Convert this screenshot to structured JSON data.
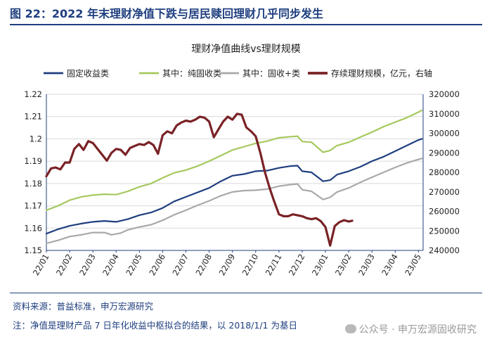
{
  "figure_title": "图 22：2022 年末理财净值下跌与居民赎回理财几乎同步发生",
  "footer": {
    "source": "资料来源：普益标准，申万宏源研究",
    "note": "注：净值是理财产品 7 日年化收益中枢拟合的结果，以 2018/1/1 为基日",
    "watermark": "公众号 · 申万宏源固收研究"
  },
  "colors": {
    "navy": "#1f3f7f",
    "green": "#a6c85e",
    "gray": "#a9a9a9",
    "maroon": "#7a2226"
  },
  "chart_data": {
    "type": "line",
    "title": "理财净值曲线vs理财规模",
    "x_tick_labels": [
      "22/01",
      "22/02",
      "22/03",
      "22/04",
      "22/05",
      "22/06",
      "22/07",
      "22/08",
      "22/09",
      "22/10",
      "22/11",
      "22/12",
      "23/01",
      "23/02",
      "23/03",
      "23/04",
      "23/05"
    ],
    "x_range": [
      0,
      16.2
    ],
    "y_left": {
      "range": [
        1.15,
        1.22
      ],
      "ticks": [
        1.15,
        1.16,
        1.17,
        1.18,
        1.19,
        1.2,
        1.21,
        1.22
      ],
      "tick_labels": [
        "1.15",
        "1.16",
        "1.17",
        "1.18",
        "1.19",
        "1.2",
        "1.21",
        "1.22"
      ]
    },
    "y_right": {
      "range": [
        240000,
        320000
      ],
      "ticks": [
        240000,
        250000,
        260000,
        270000,
        280000,
        290000,
        300000,
        310000,
        320000
      ],
      "tick_labels": [
        "240000",
        "250000",
        "260000",
        "270000",
        "280000",
        "290000",
        "300000",
        "310000",
        "320000"
      ]
    },
    "series": [
      {
        "name": "固定收益类",
        "axis": "left",
        "color": "#1f3f7f",
        "width": 2.2,
        "points": [
          [
            0,
            1.1575
          ],
          [
            0.5,
            1.1595
          ],
          [
            1,
            1.161
          ],
          [
            1.5,
            1.162
          ],
          [
            2,
            1.1628
          ],
          [
            2.5,
            1.1632
          ],
          [
            3,
            1.1628
          ],
          [
            3.5,
            1.164
          ],
          [
            4,
            1.1658
          ],
          [
            4.5,
            1.167
          ],
          [
            5,
            1.169
          ],
          [
            5.5,
            1.172
          ],
          [
            6,
            1.174
          ],
          [
            6.5,
            1.176
          ],
          [
            7,
            1.178
          ],
          [
            7.5,
            1.181
          ],
          [
            8,
            1.1835
          ],
          [
            8.5,
            1.1842
          ],
          [
            9,
            1.1855
          ],
          [
            9.5,
            1.1858
          ],
          [
            10,
            1.187
          ],
          [
            10.5,
            1.1878
          ],
          [
            10.8,
            1.188
          ],
          [
            11,
            1.1855
          ],
          [
            11.4,
            1.185
          ],
          [
            11.9,
            1.181
          ],
          [
            12.2,
            1.1815
          ],
          [
            12.5,
            1.184
          ],
          [
            13,
            1.1855
          ],
          [
            13.5,
            1.1875
          ],
          [
            14,
            1.19
          ],
          [
            14.5,
            1.192
          ],
          [
            15,
            1.1945
          ],
          [
            15.5,
            1.197
          ],
          [
            16,
            1.1995
          ],
          [
            16.15,
            1.2
          ]
        ]
      },
      {
        "name": "其中：纯固收类",
        "axis": "left",
        "color": "#a6c85e",
        "width": 2.2,
        "points": [
          [
            0,
            1.168
          ],
          [
            0.5,
            1.17
          ],
          [
            1,
            1.1725
          ],
          [
            1.5,
            1.174
          ],
          [
            2,
            1.1748
          ],
          [
            2.5,
            1.1752
          ],
          [
            3,
            1.175
          ],
          [
            3.5,
            1.1765
          ],
          [
            4,
            1.1785
          ],
          [
            4.5,
            1.18
          ],
          [
            5,
            1.1825
          ],
          [
            5.5,
            1.1848
          ],
          [
            6,
            1.186
          ],
          [
            6.5,
            1.1878
          ],
          [
            7,
            1.19
          ],
          [
            7.5,
            1.1925
          ],
          [
            8,
            1.195
          ],
          [
            8.5,
            1.1965
          ],
          [
            9,
            1.198
          ],
          [
            9.5,
            1.199
          ],
          [
            10,
            1.2005
          ],
          [
            10.5,
            1.201
          ],
          [
            10.8,
            1.2012
          ],
          [
            11,
            1.1988
          ],
          [
            11.4,
            1.1985
          ],
          [
            11.9,
            1.194
          ],
          [
            12.2,
            1.1948
          ],
          [
            12.5,
            1.197
          ],
          [
            13,
            1.1985
          ],
          [
            13.5,
            1.2008
          ],
          [
            14,
            1.203
          ],
          [
            14.5,
            1.2055
          ],
          [
            15,
            1.2075
          ],
          [
            15.5,
            1.2095
          ],
          [
            16,
            1.212
          ],
          [
            16.15,
            1.2128
          ]
        ]
      },
      {
        "name": "其中：固收+类",
        "axis": "left",
        "color": "#a9a9a9",
        "width": 2.2,
        "points": [
          [
            0,
            1.1532
          ],
          [
            0.5,
            1.1545
          ],
          [
            1,
            1.1562
          ],
          [
            1.5,
            1.157
          ],
          [
            2,
            1.158
          ],
          [
            2.5,
            1.158
          ],
          [
            2.8,
            1.157
          ],
          [
            3.2,
            1.1578
          ],
          [
            3.5,
            1.1592
          ],
          [
            4,
            1.1605
          ],
          [
            4.5,
            1.1615
          ],
          [
            5,
            1.1635
          ],
          [
            5.5,
            1.166
          ],
          [
            6,
            1.168
          ],
          [
            6.5,
            1.1702
          ],
          [
            7,
            1.1722
          ],
          [
            7.5,
            1.1745
          ],
          [
            8,
            1.1762
          ],
          [
            8.5,
            1.1768
          ],
          [
            9,
            1.177
          ],
          [
            9.5,
            1.1775
          ],
          [
            10,
            1.1788
          ],
          [
            10.5,
            1.1795
          ],
          [
            10.8,
            1.1798
          ],
          [
            11,
            1.1772
          ],
          [
            11.4,
            1.1765
          ],
          [
            11.9,
            1.1728
          ],
          [
            12.2,
            1.1738
          ],
          [
            12.5,
            1.1762
          ],
          [
            13,
            1.178
          ],
          [
            13.5,
            1.1805
          ],
          [
            14,
            1.1828
          ],
          [
            14.5,
            1.185
          ],
          [
            15,
            1.1872
          ],
          [
            15.5,
            1.1892
          ],
          [
            16,
            1.1908
          ],
          [
            16.15,
            1.1912
          ]
        ]
      },
      {
        "name": "存续理财规模，亿元，右轴",
        "axis": "right",
        "color": "#7a2226",
        "width": 3.2,
        "points": [
          [
            0,
            278000
          ],
          [
            0.2,
            282000
          ],
          [
            0.4,
            282500
          ],
          [
            0.6,
            281500
          ],
          [
            0.8,
            285000
          ],
          [
            1.0,
            285000
          ],
          [
            1.2,
            292000
          ],
          [
            1.4,
            294500
          ],
          [
            1.6,
            291500
          ],
          [
            1.8,
            296000
          ],
          [
            2.0,
            295000
          ],
          [
            2.2,
            292000
          ],
          [
            2.4,
            289000
          ],
          [
            2.6,
            286000
          ],
          [
            2.8,
            290000
          ],
          [
            3.0,
            292000
          ],
          [
            3.2,
            291500
          ],
          [
            3.4,
            289000
          ],
          [
            3.6,
            292500
          ],
          [
            3.8,
            293500
          ],
          [
            4.0,
            294500
          ],
          [
            4.2,
            294000
          ],
          [
            4.4,
            295500
          ],
          [
            4.6,
            294000
          ],
          [
            4.8,
            289500
          ],
          [
            5.0,
            299000
          ],
          [
            5.2,
            301000
          ],
          [
            5.4,
            300000
          ],
          [
            5.6,
            304000
          ],
          [
            5.8,
            305500
          ],
          [
            6.0,
            306500
          ],
          [
            6.2,
            306000
          ],
          [
            6.4,
            307000
          ],
          [
            6.6,
            308500
          ],
          [
            6.8,
            308000
          ],
          [
            7.0,
            306000
          ],
          [
            7.2,
            298000
          ],
          [
            7.4,
            302000
          ],
          [
            7.6,
            306000
          ],
          [
            7.8,
            308500
          ],
          [
            8.0,
            307000
          ],
          [
            8.2,
            310000
          ],
          [
            8.4,
            309500
          ],
          [
            8.6,
            303000
          ],
          [
            8.8,
            301000
          ],
          [
            9.0,
            298500
          ],
          [
            9.2,
            290000
          ],
          [
            9.4,
            280000
          ],
          [
            9.6,
            272000
          ],
          [
            9.8,
            265000
          ],
          [
            10.0,
            258500
          ],
          [
            10.2,
            257500
          ],
          [
            10.4,
            257500
          ],
          [
            10.6,
            258500
          ],
          [
            10.8,
            258000
          ],
          [
            11.0,
            257500
          ],
          [
            11.2,
            256500
          ],
          [
            11.4,
            256000
          ],
          [
            11.6,
            256500
          ],
          [
            11.8,
            255000
          ],
          [
            12.0,
            252000
          ],
          [
            12.2,
            242500
          ],
          [
            12.4,
            252500
          ],
          [
            12.6,
            254500
          ],
          [
            12.8,
            255500
          ],
          [
            13.0,
            254800
          ],
          [
            13.15,
            255200
          ]
        ]
      }
    ]
  }
}
